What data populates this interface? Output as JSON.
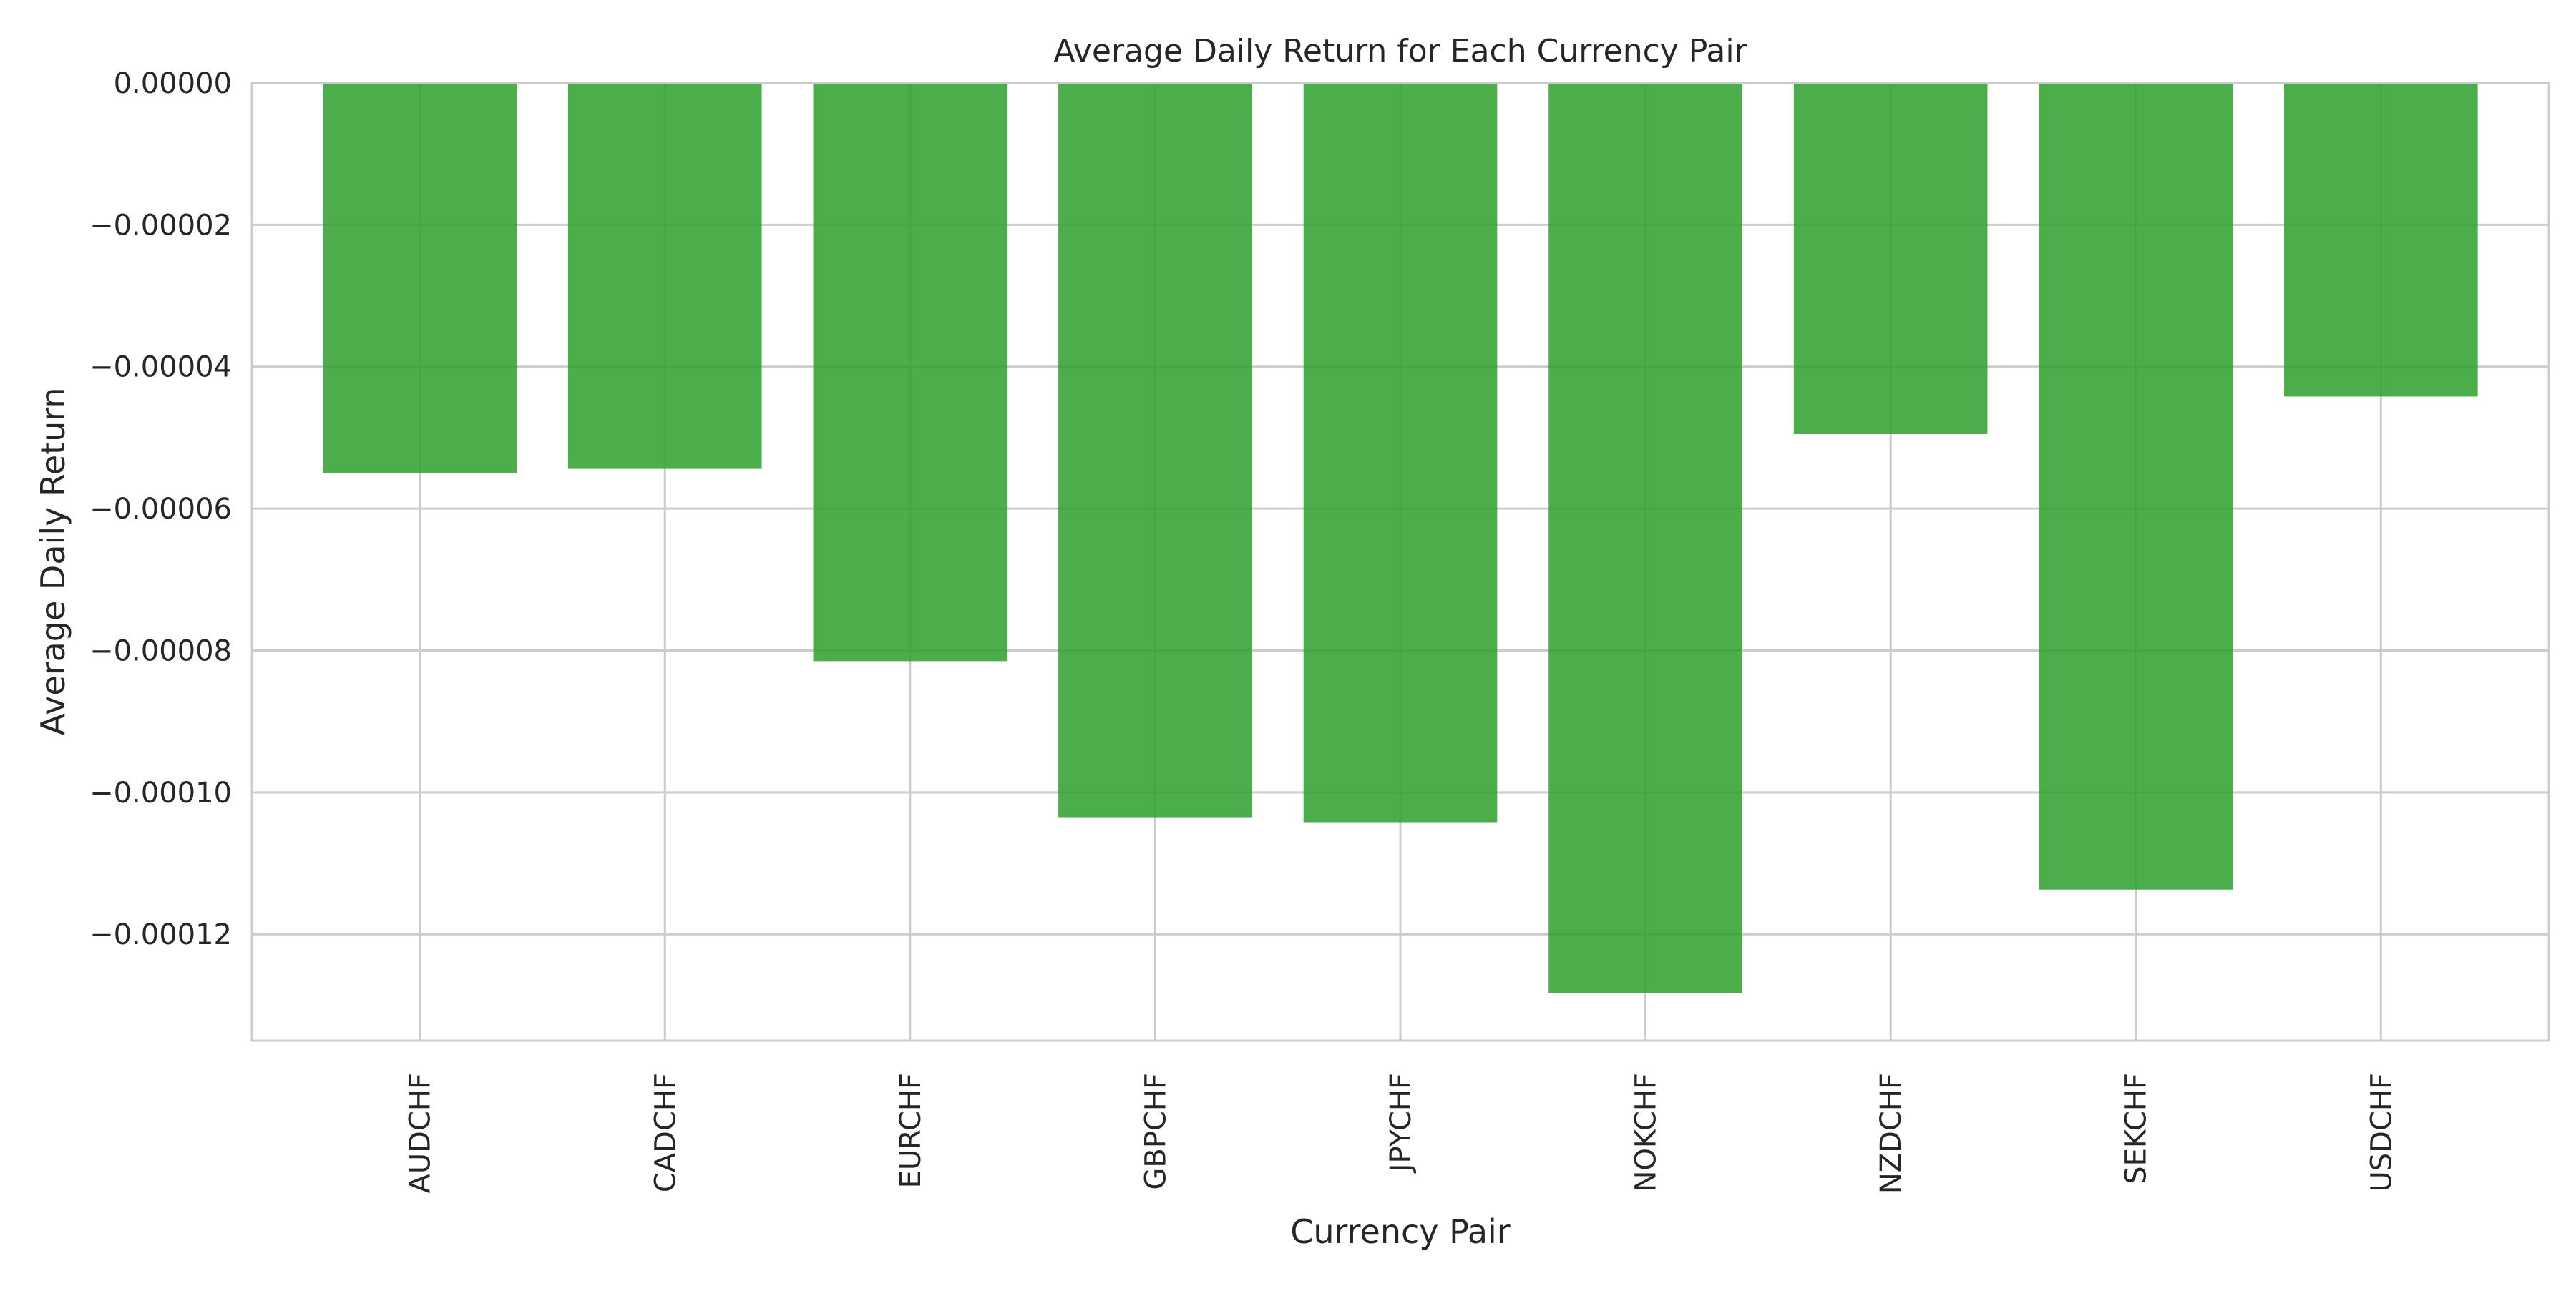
{
  "chart_data": {
    "type": "bar",
    "title": "Average Daily Return for Each Currency Pair",
    "xlabel": "Currency Pair",
    "ylabel": "Average Daily Return",
    "categories": [
      "AUDCHF",
      "CADCHF",
      "EURCHF",
      "GBPCHF",
      "JPYCHF",
      "NOKCHF",
      "NZDCHF",
      "SEKCHF",
      "USDCHF"
    ],
    "values": [
      -5.5e-05,
      -5.44e-05,
      -8.15e-05,
      -0.0001035,
      -0.0001042,
      -0.0001283,
      -4.95e-05,
      -0.0001137,
      -4.42e-05
    ],
    "ylim": [
      -0.000135,
      0
    ],
    "yticks": [
      0,
      -2e-05,
      -4e-05,
      -6e-05,
      -8e-05,
      -0.0001,
      -0.00012
    ],
    "ytick_labels": [
      "0.00000",
      "−0.00002",
      "−0.00004",
      "−0.00006",
      "−0.00008",
      "−0.00010",
      "−0.00012"
    ],
    "grid": true,
    "x_tick_rotation": "vertical",
    "colors": {
      "bar": "#2ca02c",
      "bar_opacity": 0.85,
      "grid": "#cccccc",
      "axes_edge": "#cccccc",
      "text": "#262626",
      "background": "#ffffff"
    }
  }
}
